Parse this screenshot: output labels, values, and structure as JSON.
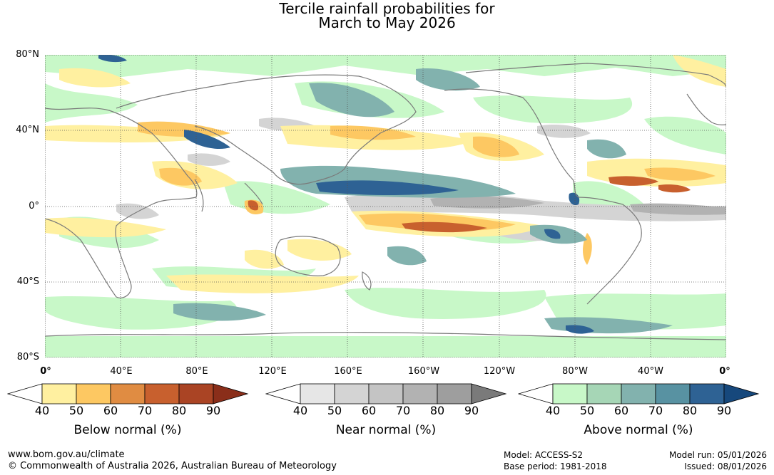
{
  "title_line1": "Tercile rainfall probabilities for",
  "title_line2": "March to May 2026",
  "lat_labels": [
    "80°N",
    "40°N",
    "0°",
    "40°S",
    "80°S"
  ],
  "lon_labels": [
    "0°",
    "40°E",
    "80°E",
    "120°E",
    "160°E",
    "160°W",
    "120°W",
    "80°W",
    "40°W",
    "0°"
  ],
  "legends": [
    {
      "title": "Below normal (%)",
      "ticks": [
        "40",
        "50",
        "60",
        "70",
        "80",
        "90"
      ],
      "colors": [
        "#ffffff",
        "#fff0a0",
        "#fdc862",
        "#e08c42",
        "#c8602e",
        "#aa4424",
        "#8a2e1a"
      ]
    },
    {
      "title": "Near normal (%)",
      "ticks": [
        "40",
        "50",
        "60",
        "70",
        "80",
        "90"
      ],
      "colors": [
        "#ffffff",
        "#e6e6e6",
        "#d4d4d4",
        "#c4c4c4",
        "#b2b2b2",
        "#9e9e9e",
        "#7a7a7a"
      ]
    },
    {
      "title": "Above normal (%)",
      "ticks": [
        "40",
        "50",
        "60",
        "70",
        "80",
        "90"
      ],
      "colors": [
        "#ffffff",
        "#c8f8c8",
        "#a6d6b6",
        "#82b2ae",
        "#5892a2",
        "#2e6294",
        "#16487c"
      ]
    }
  ],
  "footer": {
    "website": "www.bom.gov.au/climate",
    "copyright": "© Commonwealth of Australia 2026, Australian Bureau of Meteorology",
    "model": "Model: ACCESS-S2",
    "base_period": "Base period: 1981-2018",
    "model_run": "Model run: 05/01/2026",
    "issued": "Issued: 08/01/2026"
  }
}
